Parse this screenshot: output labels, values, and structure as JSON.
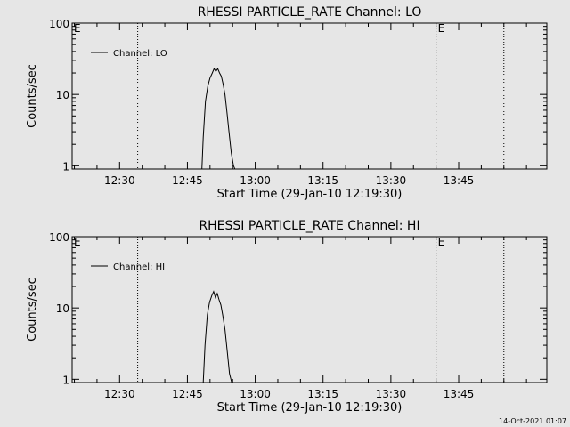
{
  "colors": {
    "background": "#e6e6e6",
    "foreground": "#000000"
  },
  "footer_timestamp": "14-Oct-2021 01:07",
  "chart_data": [
    {
      "type": "line",
      "title": "RHESSI PARTICLE_RATE Channel: LO",
      "xlabel": "Start Time (29-Jan-10 12:19:30)",
      "ylabel": "Counts/sec",
      "yscale": "log",
      "ylim": [
        0.9,
        100
      ],
      "xlim_min": [
        0,
        105
      ],
      "xtick_values_min": [
        10.5,
        25.5,
        40.5,
        55.5,
        70.5,
        85.5
      ],
      "xtick_labels": [
        "12:30",
        "12:45",
        "13:00",
        "13:15",
        "13:30",
        "13:45"
      ],
      "ytick_values": [
        1,
        10,
        100
      ],
      "ytick_labels": [
        "1",
        "10",
        "100"
      ],
      "legend": {
        "label": "Channel: LO",
        "position": "top-left"
      },
      "event_lines_min": [
        14.5,
        80.5,
        95.5
      ],
      "event_markers": [
        {
          "x_min": 0,
          "label": "E"
        },
        {
          "x_min": 80.5,
          "label": "E"
        }
      ],
      "series": [
        {
          "name": "Channel: LO",
          "x_min": [
            28.7,
            29.0,
            29.5,
            30.0,
            30.5,
            31.0,
            31.4,
            31.8,
            32.2,
            32.6,
            33.0,
            33.4,
            33.8,
            34.2,
            34.7,
            35.2,
            35.7,
            36.0
          ],
          "y": [
            0.9,
            2.5,
            8,
            13,
            17,
            20,
            23,
            21,
            23,
            20,
            18,
            14,
            10,
            6,
            3,
            1.5,
            1.0,
            0.9
          ]
        }
      ]
    },
    {
      "type": "line",
      "title": "RHESSI PARTICLE_RATE Channel: HI",
      "xlabel": "Start Time (29-Jan-10 12:19:30)",
      "ylabel": "Counts/sec",
      "yscale": "log",
      "ylim": [
        0.9,
        100
      ],
      "xlim_min": [
        0,
        105
      ],
      "xtick_values_min": [
        10.5,
        25.5,
        40.5,
        55.5,
        70.5,
        85.5
      ],
      "xtick_labels": [
        "12:30",
        "12:45",
        "13:00",
        "13:15",
        "13:30",
        "13:45"
      ],
      "ytick_values": [
        1,
        10,
        100
      ],
      "ytick_labels": [
        "1",
        "10",
        "100"
      ],
      "legend": {
        "label": "Channel: HI",
        "position": "top-left"
      },
      "event_lines_min": [
        14.5,
        80.5,
        95.5
      ],
      "event_markers": [
        {
          "x_min": 0,
          "label": "E"
        },
        {
          "x_min": 80.5,
          "label": "E"
        }
      ],
      "series": [
        {
          "name": "Channel: HI",
          "x_min": [
            29.0,
            29.4,
            29.9,
            30.4,
            30.9,
            31.3,
            31.7,
            32.1,
            32.5,
            32.9,
            33.3,
            33.8,
            34.3,
            34.8,
            35.3
          ],
          "y": [
            0.9,
            3,
            8,
            12,
            15,
            17,
            14,
            16,
            13,
            11,
            8,
            5,
            2.5,
            1.2,
            0.9
          ]
        }
      ]
    }
  ]
}
